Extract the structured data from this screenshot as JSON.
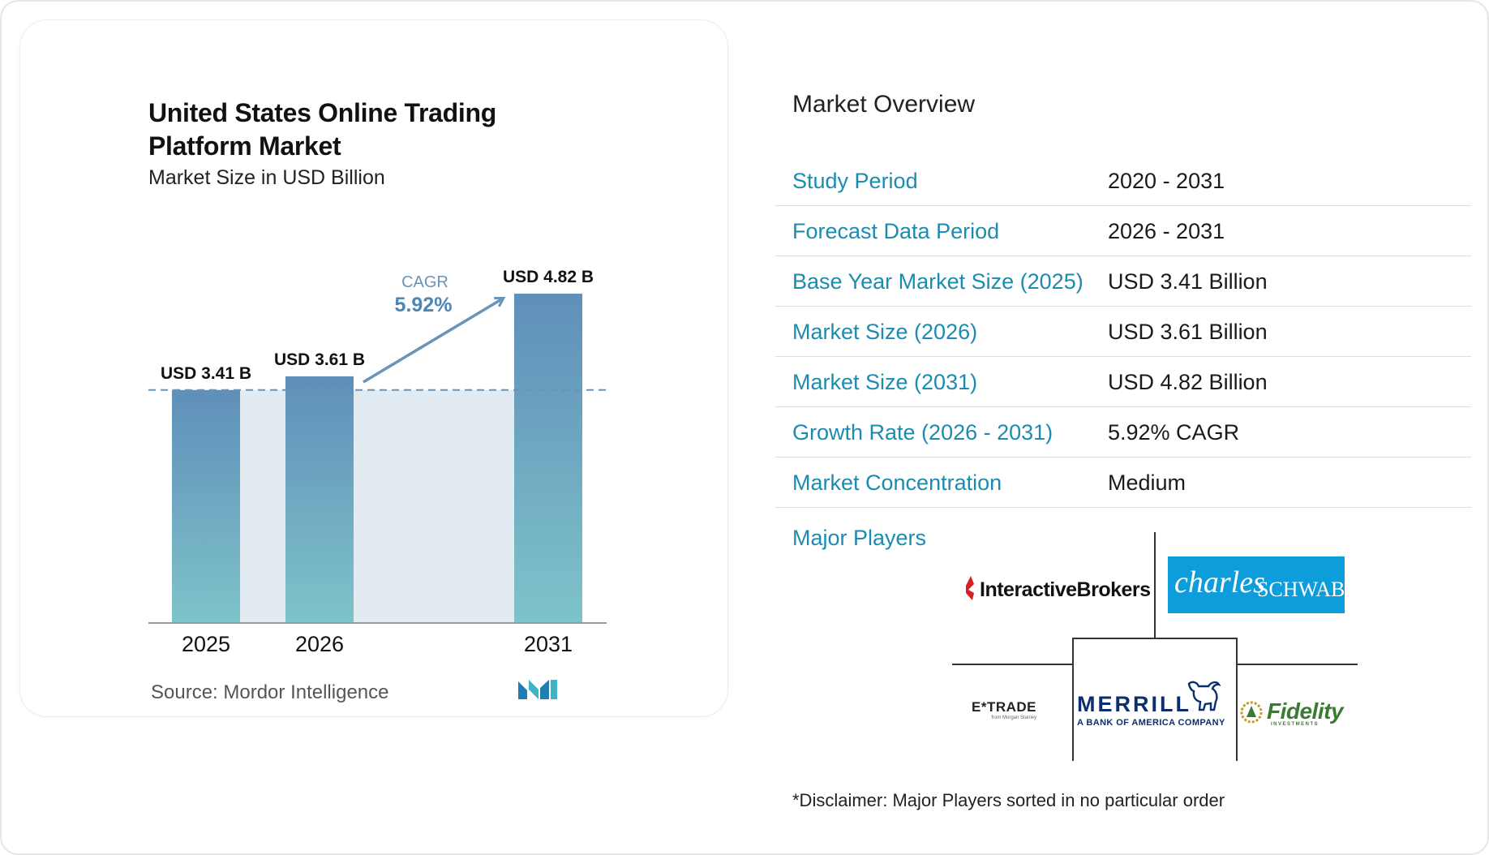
{
  "chart_data": {
    "type": "bar",
    "title": "United States Online Trading Platform Market",
    "subtitle": "Market Size in USD Billion",
    "categories": [
      "2025",
      "2026",
      "2031"
    ],
    "values": [
      3.41,
      3.61,
      4.82
    ],
    "data_labels": [
      "USD 3.41 B",
      "USD 3.61 B",
      "USD 4.82 B"
    ],
    "unit": "USD Billion",
    "ylim": [
      0,
      4.82
    ],
    "cagr_label": "CAGR",
    "cagr_value": "5.92%",
    "reference_line_value": 3.41,
    "colors": {
      "bar_top": "#5f8fba",
      "bar_bottom": "#7ec3c9",
      "band": "#e3ebf2",
      "arrow": "#6a95b9",
      "cagr_label": "#6a95b9",
      "cagr_value": "#4d86b4"
    }
  },
  "source": "Source:  Mordor Intelligence",
  "overview": {
    "title": "Market Overview",
    "rows": [
      {
        "key": "Study Period",
        "value": "2020 - 2031"
      },
      {
        "key": "Forecast Data Period",
        "value": "2026 - 2031"
      },
      {
        "key": "Base Year Market Size (2025)",
        "value": "USD 3.41 Billion"
      },
      {
        "key": "Market Size (2026)",
        "value": "USD 3.61 Billion"
      },
      {
        "key": "Market Size (2031)",
        "value": "USD 4.82 Billion"
      },
      {
        "key": "Growth Rate (2026 - 2031)",
        "value": "5.92% CAGR"
      },
      {
        "key": "Market Concentration",
        "value": "Medium"
      }
    ]
  },
  "major_players": {
    "title": "Major Players",
    "logos": [
      "InteractiveBrokers",
      "charles SCHWAB",
      "E*TRADE",
      "MERRILL A BANK OF AMERICA COMPANY",
      "Fidelity INVESTMENTS"
    ],
    "interactive_brokers": "InteractiveBrokers",
    "schwab_script": "charles",
    "schwab_caps": "SCHWAB",
    "etrade": "E*TRADE",
    "etrade_sub": "from Morgan Stanley",
    "merrill": "MERRILL",
    "merrill_sub": "A BANK OF AMERICA COMPANY",
    "fidelity": "Fidelity",
    "fidelity_sub": "INVESTMENTS"
  },
  "disclaimer": "*Disclaimer: Major Players sorted in no particular order"
}
